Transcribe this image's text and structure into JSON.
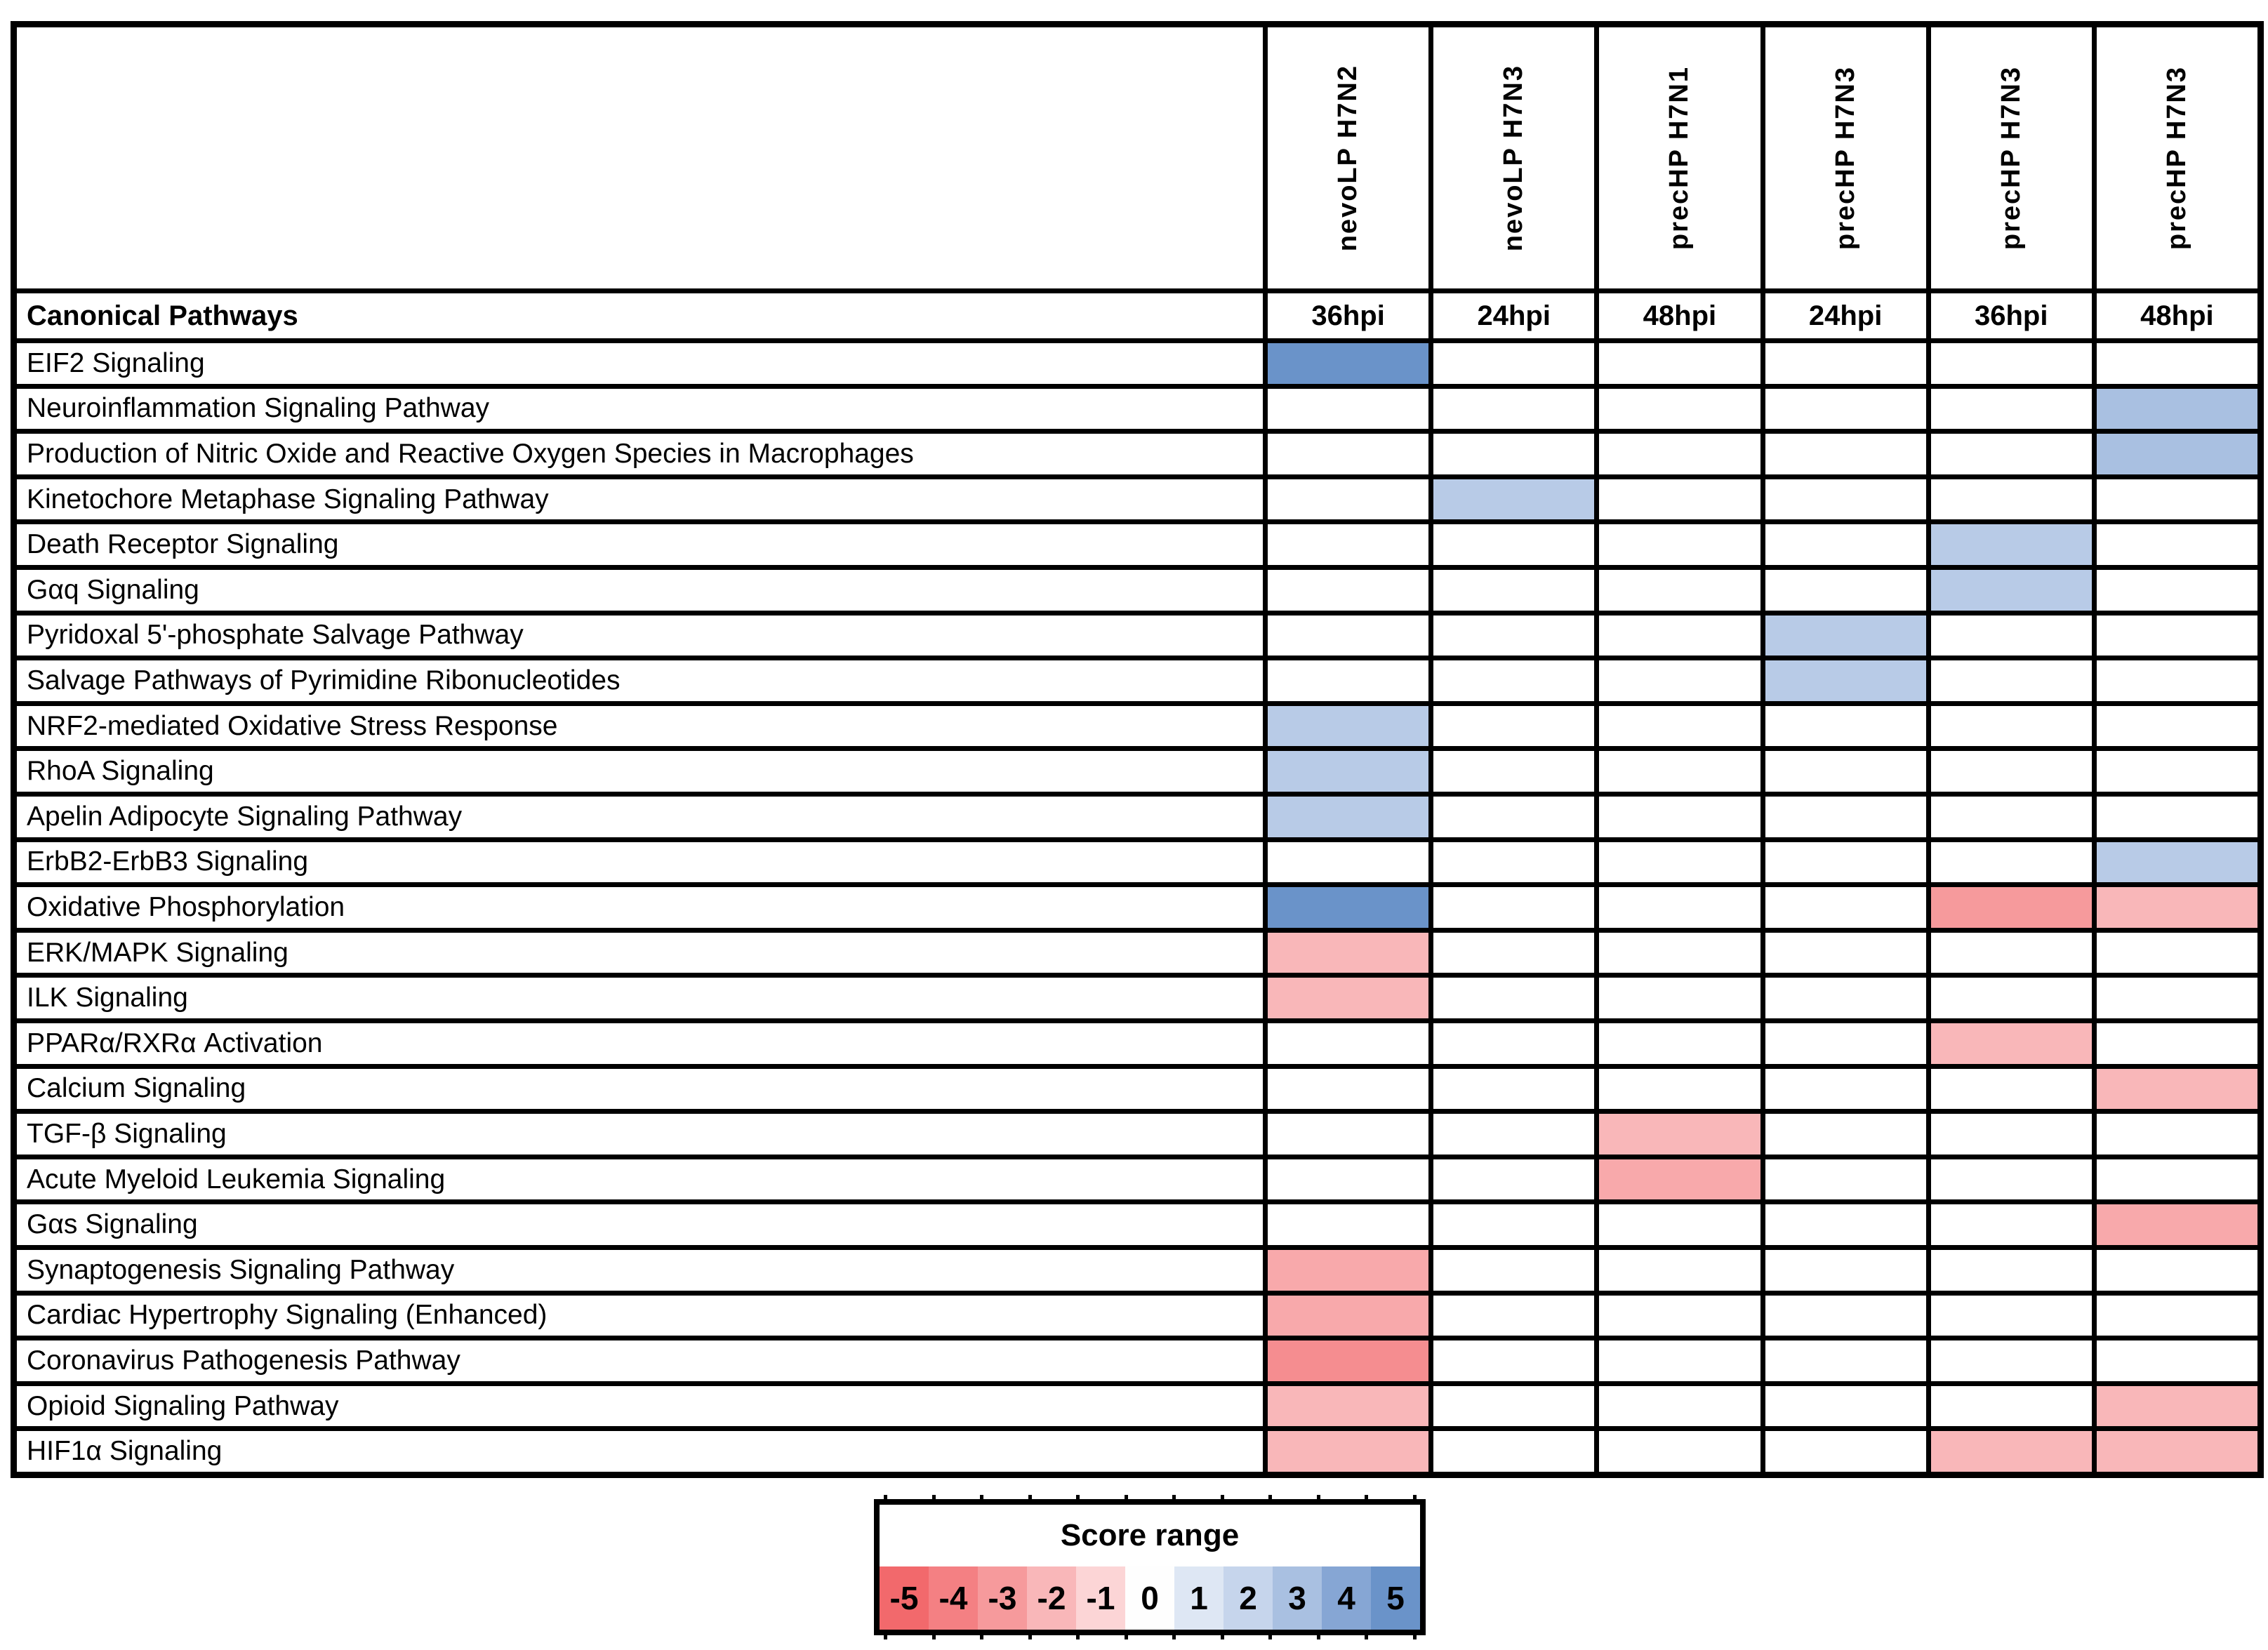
{
  "chart_data": {
    "type": "heatmap",
    "corner_header": "Canonical Pathways",
    "columns": [
      {
        "virus": "nevoLP H7N2",
        "timepoint": "36hpi"
      },
      {
        "virus": "nevoLP H7N3",
        "timepoint": "24hpi"
      },
      {
        "virus": "precHP H7N1",
        "timepoint": "48hpi"
      },
      {
        "virus": "precHP H7N3",
        "timepoint": "24hpi"
      },
      {
        "virus": "precHP H7N3",
        "timepoint": "36hpi"
      },
      {
        "virus": "precHP H7N3",
        "timepoint": "48hpi"
      }
    ],
    "rows": [
      "EIF2 Signaling",
      "Neuroinflammation Signaling Pathway",
      "Production of Nitric Oxide and Reactive Oxygen Species in Macrophages",
      "Kinetochore Metaphase Signaling Pathway",
      "Death Receptor Signaling",
      "Gαq Signaling",
      "Pyridoxal 5'-phosphate Salvage Pathway",
      "Salvage Pathways of Pyrimidine Ribonucleotides",
      "NRF2-mediated Oxidative Stress Response",
      "RhoA Signaling",
      "Apelin Adipocyte Signaling Pathway",
      "ErbB2-ErbB3 Signaling",
      "Oxidative Phosphorylation",
      "ERK/MAPK Signaling",
      "ILK Signaling",
      "PPARα/RXRα Activation",
      "Calcium Signaling",
      "TGF-β Signaling",
      "Acute Myeloid Leukemia Signaling",
      "Gαs Signaling",
      "Synaptogenesis Signaling Pathway",
      "Cardiac Hypertrophy Signaling (Enhanced)",
      "Coronavirus Pathogenesis Pathway",
      "Opioid Signaling Pathway",
      "HIF1α Signaling"
    ],
    "values": [
      [
        5,
        null,
        null,
        null,
        null,
        null
      ],
      [
        null,
        null,
        null,
        null,
        null,
        3
      ],
      [
        null,
        null,
        null,
        null,
        null,
        3
      ],
      [
        null,
        2.5,
        null,
        null,
        null,
        null
      ],
      [
        null,
        null,
        null,
        null,
        2.5,
        null
      ],
      [
        null,
        null,
        null,
        null,
        2.5,
        null
      ],
      [
        null,
        null,
        null,
        2.5,
        null,
        null
      ],
      [
        null,
        null,
        null,
        2.5,
        null,
        null
      ],
      [
        2.5,
        null,
        null,
        null,
        null,
        null
      ],
      [
        2.5,
        null,
        null,
        null,
        null,
        null
      ],
      [
        2.5,
        null,
        null,
        null,
        null,
        null
      ],
      [
        null,
        null,
        null,
        null,
        null,
        2.5
      ],
      [
        5,
        null,
        null,
        null,
        -3,
        -2
      ],
      [
        -2,
        null,
        null,
        null,
        null,
        null
      ],
      [
        -2,
        null,
        null,
        null,
        null,
        null
      ],
      [
        null,
        null,
        null,
        null,
        -2,
        null
      ],
      [
        null,
        null,
        null,
        null,
        null,
        -2
      ],
      [
        null,
        null,
        -2,
        null,
        null,
        null
      ],
      [
        null,
        null,
        -2.5,
        null,
        null,
        null
      ],
      [
        null,
        null,
        null,
        null,
        null,
        -2.5
      ],
      [
        -2.5,
        null,
        null,
        null,
        null,
        null
      ],
      [
        -2.5,
        null,
        null,
        null,
        null,
        null
      ],
      [
        -3.5,
        null,
        null,
        null,
        null,
        null
      ],
      [
        -2,
        null,
        null,
        null,
        null,
        -2
      ],
      [
        -2,
        null,
        null,
        null,
        -2,
        -2
      ]
    ],
    "score_range": [
      -5,
      5
    ],
    "legend": {
      "title": "Score range",
      "ticks": [
        -5,
        -4,
        -3,
        -2,
        -1,
        0,
        1,
        2,
        3,
        4,
        5
      ]
    },
    "palette": {
      "-5": "#F2696C",
      "-4": "#F48083",
      "-3": "#F69A9C",
      "-2": "#F9B7B9",
      "-1": "#FCD5D6",
      "0": "#FEFEFE",
      "1": "#DEE7F4",
      "2": "#C6D5EC",
      "3": "#A9C0E1",
      "4": "#86A6D4",
      "5": "#6A93C9"
    },
    "colors": {
      "border": "#000000",
      "background": "#FFFFFF",
      "empty_cell": "#FFFFFF"
    }
  }
}
